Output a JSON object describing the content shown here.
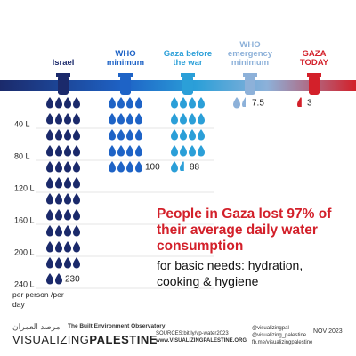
{
  "chart_data": {
    "type": "pictogram",
    "title": "People in Gaza lost 97% of their average daily water consumption",
    "subtitle": "for basic needs: hydration, cooking & hygiene",
    "y_label": "per person /per day",
    "categories": [
      "Israel",
      "WHO minimum",
      "Gaza before the war",
      "WHO emergency minimum",
      "GAZA TODAY"
    ],
    "values": [
      230,
      100,
      88,
      7.5,
      3
    ],
    "colors": [
      "#1b2a6b",
      "#1e63c6",
      "#2b9fd8",
      "#8db1d9",
      "#d3202a"
    ],
    "ylim": [
      0,
      240
    ],
    "yticks": [
      {
        "value": 40,
        "label": "40 L"
      },
      {
        "value": 80,
        "label": "80 L"
      },
      {
        "value": 120,
        "label": "120 L"
      },
      {
        "value": 160,
        "label": "160 L"
      },
      {
        "value": 200,
        "label": "200 L"
      },
      {
        "value": 240,
        "label": "240 L"
      }
    ],
    "grid": true
  },
  "footer": {
    "org_arabic": "مرصد العمران",
    "org": "The Built Environment Observatory",
    "brand_a": "VISUALIZING",
    "brand_b": "PALESTINE",
    "sources": "SOURCES:bit.ly/vp-water2023",
    "website": "www.VISUALIZINGPALESTINE.ORG",
    "social": [
      "@visualizingpal",
      "@visualizing_palestine",
      "fb.me/visualizingpalestine"
    ],
    "date": "NOV 2023"
  }
}
